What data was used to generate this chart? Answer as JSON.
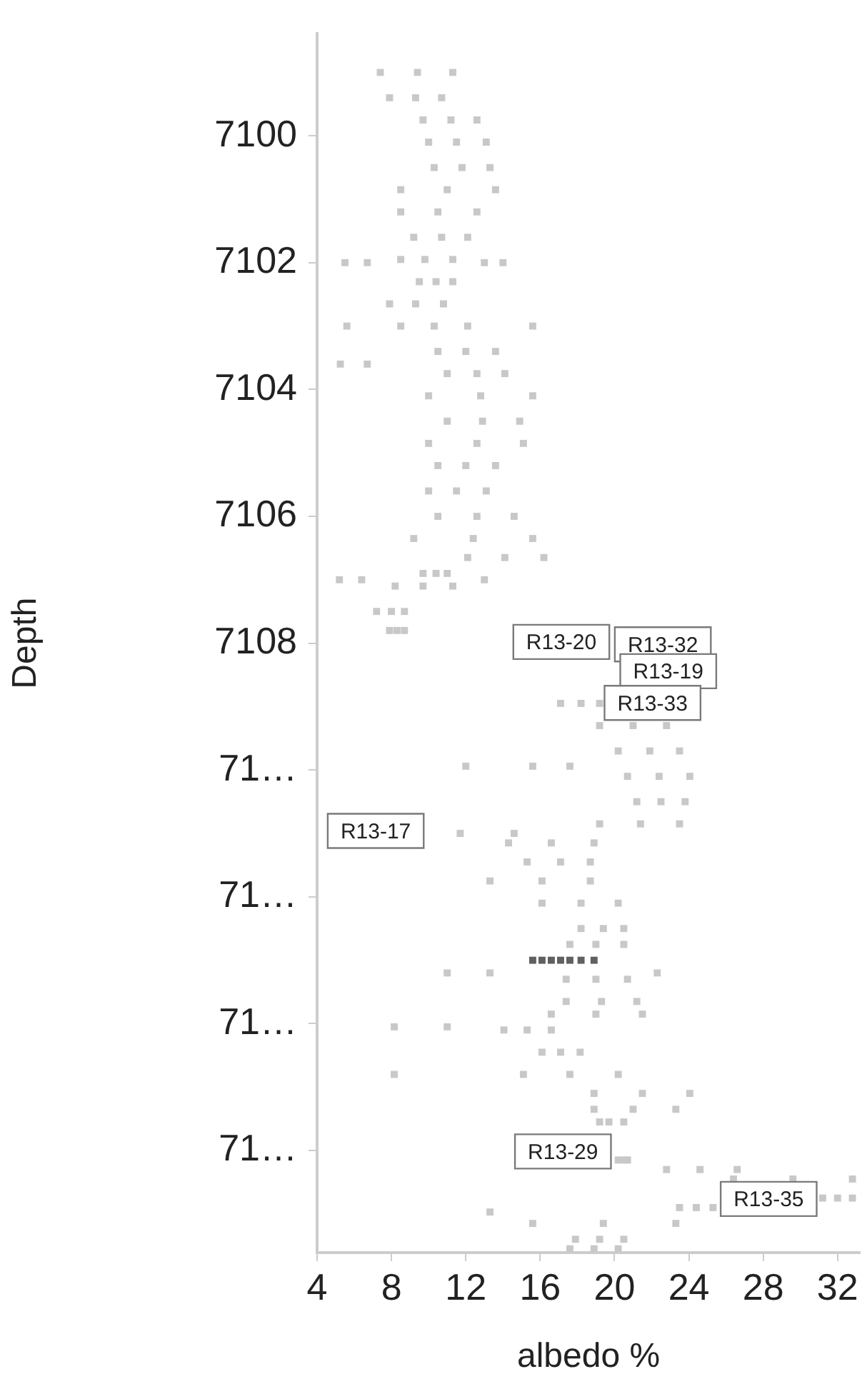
{
  "chart_data": {
    "type": "scatter",
    "xlabel": "albedo %",
    "ylabel": "Depth",
    "xlim": [
      4,
      33.2
    ],
    "xticks": [
      4,
      8,
      12,
      16,
      20,
      24,
      28,
      32
    ],
    "ylim": [
      7117.61,
      7098.39
    ],
    "yticks": [
      7100,
      7102,
      7104,
      7106,
      7108,
      {
        "value": 7110,
        "label": "71…"
      },
      {
        "value": 7112,
        "label": "71…"
      },
      {
        "value": 7114,
        "label": "71…"
      },
      {
        "value": 7116,
        "label": "71…"
      }
    ],
    "grid": false,
    "legend": false,
    "marker": "square",
    "series": [
      {
        "color": "#c8c8c8",
        "x": [
          7.4,
          9.4,
          11.3,
          7.9,
          9.3,
          10.7,
          9.7,
          11.2,
          12.6,
          10.0,
          11.5,
          13.1,
          10.3,
          11.8,
          13.3,
          8.5,
          11.0,
          13.6,
          8.5,
          10.5,
          12.6,
          9.2,
          10.7,
          12.1,
          8.5,
          9.8,
          11.3,
          9.5,
          10.4,
          11.3,
          7.9,
          9.3,
          10.8,
          8.5,
          10.3,
          12.1,
          10.5,
          12.0,
          13.6,
          11.0,
          12.6,
          14.1,
          10.0,
          12.8,
          15.6,
          11.0,
          12.9,
          14.9,
          10.0,
          12.6,
          15.1,
          10.5,
          12.0,
          13.6,
          10.0,
          11.5,
          13.1,
          10.5,
          12.6,
          14.6,
          9.2,
          12.4,
          15.6,
          12.1,
          14.1,
          16.2,
          9.7,
          10.4,
          11.0,
          8.2,
          9.7,
          11.3,
          7.2,
          8.0,
          8.7,
          7.9,
          8.3,
          8.7,
          5.5,
          6.7,
          13.0,
          14.0,
          5.6,
          15.6,
          5.25,
          6.7,
          5.2,
          6.4,
          13.0,
          17.1,
          18.2,
          19.2,
          19.2,
          21.0,
          22.8,
          20.2,
          21.9,
          23.5,
          20.7,
          22.4,
          24.05,
          21.2,
          22.5,
          23.8,
          19.2,
          21.4,
          23.5,
          14.3,
          16.6,
          18.9,
          15.3,
          17.1,
          18.7,
          13.3,
          16.1,
          18.7,
          16.1,
          18.2,
          20.2,
          18.2,
          19.4,
          20.5,
          17.6,
          19.0,
          20.5,
          17.4,
          19.0,
          20.7,
          17.4,
          19.3,
          21.2,
          16.6,
          19.0,
          21.5,
          14.05,
          15.3,
          16.6,
          16.1,
          17.1,
          18.15,
          15.1,
          17.6,
          20.2,
          18.9,
          21.5,
          24.05,
          18.9,
          21.0,
          23.3,
          19.2,
          19.7,
          20.5,
          20.2,
          20.5,
          20.7,
          22.8,
          24.6,
          26.6,
          26.4,
          29.6,
          32.8,
          31.2,
          32.0,
          32.8,
          23.5,
          24.4,
          25.3,
          15.6,
          19.4,
          23.3,
          17.9,
          19.2,
          20.5,
          17.6,
          18.9,
          20.2,
          12.0,
          15.6,
          17.6,
          11.7,
          14.6,
          11.0,
          13.3,
          22.3,
          8.15,
          11.0,
          8.15,
          13.3
        ],
        "values": [
          7099.0,
          7099.0,
          7099.0,
          7099.4,
          7099.4,
          7099.4,
          7099.75,
          7099.75,
          7099.75,
          7100.1,
          7100.1,
          7100.1,
          7100.5,
          7100.5,
          7100.5,
          7100.85,
          7100.85,
          7100.85,
          7101.2,
          7101.2,
          7101.2,
          7101.6,
          7101.6,
          7101.6,
          7101.95,
          7101.95,
          7101.95,
          7102.3,
          7102.3,
          7102.3,
          7102.65,
          7102.65,
          7102.65,
          7103.0,
          7103.0,
          7103.0,
          7103.4,
          7103.4,
          7103.4,
          7103.75,
          7103.75,
          7103.75,
          7104.1,
          7104.1,
          7104.1,
          7104.5,
          7104.5,
          7104.5,
          7104.85,
          7104.85,
          7104.85,
          7105.2,
          7105.2,
          7105.2,
          7105.6,
          7105.6,
          7105.6,
          7106.0,
          7106.0,
          7106.0,
          7106.35,
          7106.35,
          7106.35,
          7106.65,
          7106.65,
          7106.65,
          7106.9,
          7106.9,
          7106.9,
          7107.1,
          7107.1,
          7107.1,
          7107.5,
          7107.5,
          7107.5,
          7107.8,
          7107.8,
          7107.8,
          7102.0,
          7102.0,
          7102.0,
          7102.0,
          7103.0,
          7103.0,
          7103.6,
          7103.6,
          7107.0,
          7107.0,
          7107.0,
          7108.95,
          7108.95,
          7108.95,
          7109.3,
          7109.3,
          7109.3,
          7109.7,
          7109.7,
          7109.7,
          7110.1,
          7110.1,
          7110.1,
          7110.5,
          7110.5,
          7110.5,
          7110.85,
          7110.85,
          7110.85,
          7111.15,
          7111.15,
          7111.15,
          7111.45,
          7111.45,
          7111.45,
          7111.75,
          7111.75,
          7111.75,
          7112.1,
          7112.1,
          7112.1,
          7112.5,
          7112.5,
          7112.5,
          7112.75,
          7112.75,
          7112.75,
          7113.3,
          7113.3,
          7113.3,
          7113.65,
          7113.65,
          7113.65,
          7113.85,
          7113.85,
          7113.85,
          7114.1,
          7114.1,
          7114.1,
          7114.45,
          7114.45,
          7114.45,
          7114.8,
          7114.8,
          7114.8,
          7115.1,
          7115.1,
          7115.1,
          7115.35,
          7115.35,
          7115.35,
          7115.55,
          7115.55,
          7115.55,
          7116.15,
          7116.15,
          7116.15,
          7116.3,
          7116.3,
          7116.3,
          7116.45,
          7116.45,
          7116.45,
          7116.75,
          7116.75,
          7116.75,
          7116.9,
          7116.9,
          7116.9,
          7117.15,
          7117.15,
          7117.15,
          7117.4,
          7117.4,
          7117.4,
          7117.55,
          7117.55,
          7117.55,
          7109.94,
          7109.94,
          7109.94,
          7111.0,
          7111.0,
          7113.2,
          7113.2,
          7113.2,
          7114.05,
          7114.05,
          7114.8,
          7116.97
        ]
      },
      {
        "color": "#606060",
        "x": [
          15.6,
          16.1,
          16.6,
          17.1,
          17.6,
          18.2,
          18.9
        ],
        "values": [
          7113.0,
          7113.0,
          7113.0,
          7113.0,
          7113.0,
          7113.0,
          7113.0
        ]
      }
    ],
    "annotations": [
      "R13-20",
      "R13-32",
      "R13-19",
      "R13-33",
      "R13-17",
      "R13-29",
      "R13-35"
    ]
  }
}
